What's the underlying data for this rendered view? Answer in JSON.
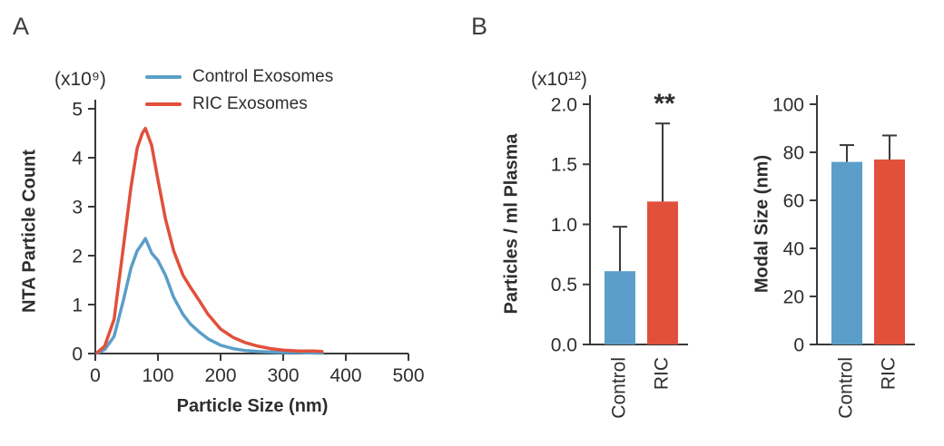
{
  "figure": {
    "panels": {
      "a": {
        "label": "A"
      },
      "b": {
        "label": "B"
      }
    }
  },
  "chart_data": [
    {
      "type": "line",
      "panel": "A",
      "y_unit": "(x10⁹)",
      "ylabel": "NTA Particle Count",
      "xlabel": "Particle Size (nm)",
      "xlim": [
        0,
        500
      ],
      "ylim": [
        0,
        5
      ],
      "xticks": [
        0,
        100,
        200,
        300,
        400,
        500
      ],
      "xtick_labels": [
        "0",
        "100",
        "200",
        "300",
        "400",
        "500"
      ],
      "yticks": [
        0,
        1,
        2,
        3,
        4,
        5
      ],
      "ytick_labels": [
        "0",
        "1",
        "2",
        "3",
        "4",
        "5"
      ],
      "legend_position": "top",
      "series": [
        {
          "name": "Control Exosomes",
          "color": "#5B9EC9",
          "x": [
            3,
            15,
            30,
            45,
            57,
            67,
            75,
            80,
            90,
            100,
            112,
            125,
            140,
            152,
            165,
            180,
            200,
            220,
            240,
            260,
            280,
            300,
            325,
            350,
            362
          ],
          "y": [
            0.01,
            0.08,
            0.35,
            1.1,
            1.75,
            2.1,
            2.25,
            2.35,
            2.05,
            1.9,
            1.6,
            1.15,
            0.8,
            0.6,
            0.45,
            0.3,
            0.17,
            0.1,
            0.06,
            0.04,
            0.03,
            0.02,
            0.02,
            0.01,
            0.01
          ]
        },
        {
          "name": "RIC Exosomes",
          "color": "#E1503B",
          "x": [
            3,
            15,
            30,
            45,
            57,
            67,
            75,
            80,
            90,
            100,
            112,
            125,
            140,
            152,
            165,
            180,
            200,
            220,
            240,
            260,
            280,
            300,
            325,
            350,
            362
          ],
          "y": [
            0.02,
            0.15,
            0.7,
            2.2,
            3.4,
            4.2,
            4.5,
            4.6,
            4.25,
            3.55,
            2.75,
            2.1,
            1.6,
            1.35,
            1.1,
            0.8,
            0.5,
            0.33,
            0.22,
            0.15,
            0.1,
            0.07,
            0.05,
            0.05,
            0.04
          ]
        }
      ]
    },
    {
      "type": "bar",
      "panel": "B",
      "y_unit": "(x10¹²)",
      "ylabel": "Particles / ml Plasma",
      "categories": [
        "Control",
        "RIC"
      ],
      "values": [
        0.61,
        1.19
      ],
      "errors": [
        0.37,
        0.65
      ],
      "colors": [
        "#5B9EC9",
        "#E1503B"
      ],
      "ylim": [
        0,
        2.0
      ],
      "yticks": [
        0,
        0.5,
        1,
        1.5,
        2
      ],
      "ytick_labels": [
        "0.0",
        "0.5",
        "1.0",
        "1.5",
        "2.0"
      ],
      "significance": {
        "label": "**",
        "category": "RIC"
      }
    },
    {
      "type": "bar",
      "panel": "B",
      "ylabel": "Modal Size (nm)",
      "categories": [
        "Control",
        "RIC"
      ],
      "values": [
        76,
        77
      ],
      "errors": [
        7,
        10
      ],
      "colors": [
        "#5B9EC9",
        "#E1503B"
      ],
      "ylim": [
        0,
        100
      ],
      "yticks": [
        0,
        20,
        40,
        60,
        80,
        100
      ],
      "ytick_labels": [
        "0",
        "20",
        "40",
        "60",
        "80",
        "100"
      ]
    }
  ]
}
